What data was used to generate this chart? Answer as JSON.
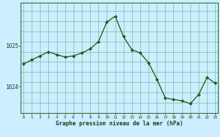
{
  "x": [
    0,
    1,
    2,
    3,
    4,
    5,
    6,
    7,
    8,
    9,
    10,
    11,
    12,
    13,
    14,
    15,
    16,
    17,
    18,
    19,
    20,
    21,
    22,
    23
  ],
  "y": [
    1024.55,
    1024.65,
    1024.75,
    1024.85,
    1024.78,
    1024.72,
    1024.75,
    1024.82,
    1024.92,
    1025.1,
    1025.58,
    1025.72,
    1025.22,
    1024.9,
    1024.82,
    1024.58,
    1024.18,
    1023.72,
    1023.68,
    1023.65,
    1023.58,
    1023.8,
    1024.22,
    1024.08
  ],
  "line_color": "#1a5c1a",
  "marker_color": "#1a5c1a",
  "bg_color": "#cceeff",
  "grid_color": "#66bb99",
  "border_color": "#336633",
  "xlabel": "Graphe pression niveau de la mer (hPa)",
  "ylim_min": 1023.35,
  "ylim_max": 1026.05,
  "yticks": [
    1024,
    1025
  ],
  "ytick_labels": [
    "1024",
    "1025"
  ]
}
